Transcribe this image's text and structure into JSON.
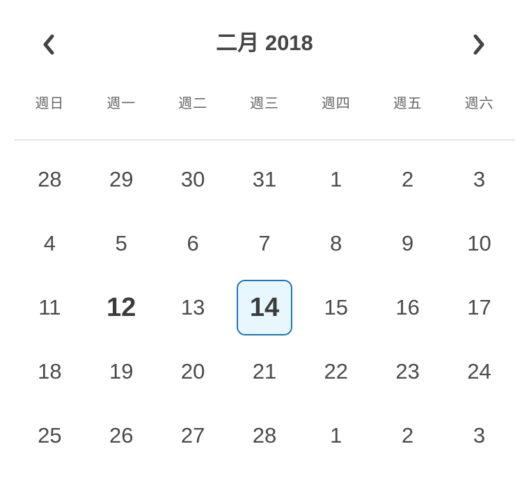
{
  "header": {
    "month_label": "二月",
    "year_label": "2018",
    "prev_icon": "chevron-left-icon",
    "next_icon": "chevron-right-icon"
  },
  "weekdays": [
    "週日",
    "週一",
    "週二",
    "週三",
    "週四",
    "週五",
    "週六"
  ],
  "weeks": [
    [
      "28",
      "29",
      "30",
      "31",
      "1",
      "2",
      "3"
    ],
    [
      "4",
      "5",
      "6",
      "7",
      "8",
      "9",
      "10"
    ],
    [
      "11",
      "12",
      "13",
      "14",
      "15",
      "16",
      "17"
    ],
    [
      "18",
      "19",
      "20",
      "21",
      "22",
      "23",
      "24"
    ],
    [
      "25",
      "26",
      "27",
      "28",
      "1",
      "2",
      "3"
    ]
  ],
  "today_day": "12",
  "selected_day": "14",
  "colors": {
    "text": "#444444",
    "selected_border": "#1e74b6",
    "selected_background": "#e8f6fd",
    "divider": "#e3e3ec"
  }
}
